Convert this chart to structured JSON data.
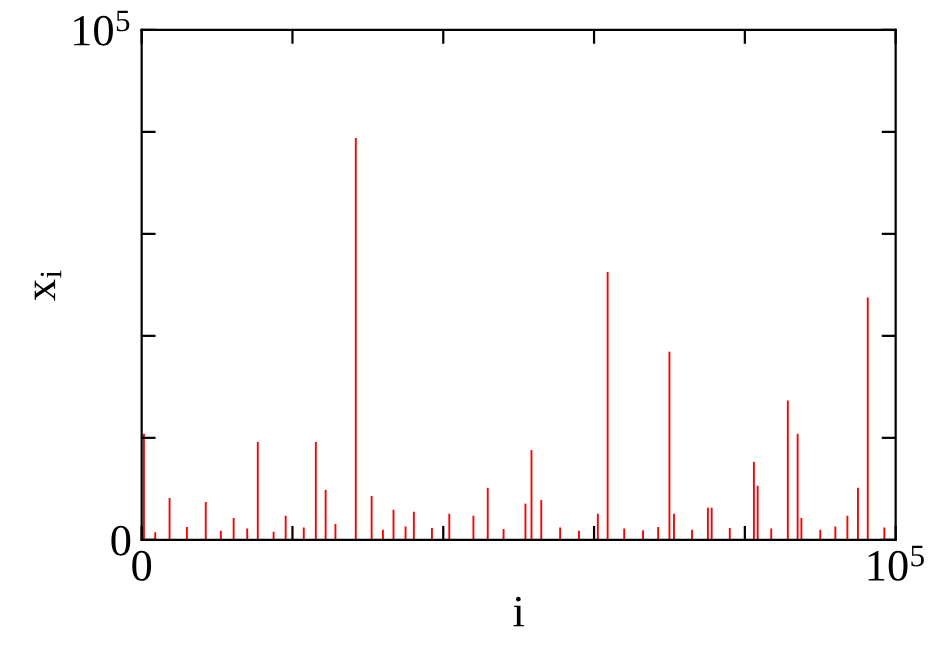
{
  "chart_data": {
    "type": "bar",
    "xlabel": "i",
    "ylabel": "x$_{i}$",
    "x": [
      300,
      1800,
      3700,
      6000,
      8500,
      10500,
      12200,
      14000,
      15400,
      17500,
      19100,
      21500,
      23100,
      24400,
      25700,
      28400,
      30500,
      32000,
      33400,
      35000,
      36100,
      38500,
      40800,
      44000,
      45900,
      48000,
      50900,
      51700,
      53000,
      55500,
      58000,
      60500,
      61800,
      64000,
      66500,
      68500,
      70000,
      70600,
      73000,
      75100,
      75600,
      78000,
      81200,
      81700,
      83500,
      85700,
      87000,
      87500,
      90000,
      92000,
      93600,
      95000,
      96300,
      98500
    ],
    "values": [
      20800,
      1500,
      8200,
      2500,
      7400,
      1800,
      4300,
      2200,
      19200,
      1600,
      4700,
      2400,
      19200,
      9800,
      3100,
      78800,
      8600,
      2000,
      5900,
      2600,
      5500,
      2300,
      5100,
      4700,
      10200,
      2100,
      7100,
      17600,
      7800,
      2400,
      1800,
      5100,
      52500,
      2200,
      1900,
      2500,
      36900,
      5100,
      2000,
      6300,
      6300,
      2300,
      15300,
      10600,
      2200,
      27300,
      20800,
      4300,
      2000,
      2600,
      4700,
      10200,
      47500,
      2400
    ],
    "color": "#ff0000",
    "xlim": [
      0,
      100000
    ],
    "ylim": [
      0,
      100000
    ],
    "xticks": [
      0,
      {
        "value": 20000,
        "label": null
      },
      {
        "value": 40000,
        "label": null
      },
      {
        "value": 60000,
        "label": null
      },
      {
        "value": 80000,
        "label": null
      },
      {
        "value": 100000,
        "label": "10$^{5}$"
      }
    ],
    "yticks": [
      0,
      {
        "value": 20000,
        "label": null
      },
      {
        "value": 40000,
        "label": null
      },
      {
        "value": 60000,
        "label": null
      },
      {
        "value": 80000,
        "label": null
      },
      {
        "value": 100000,
        "label": "10$^{5}$"
      }
    ],
    "grid": false,
    "legend": false
  }
}
